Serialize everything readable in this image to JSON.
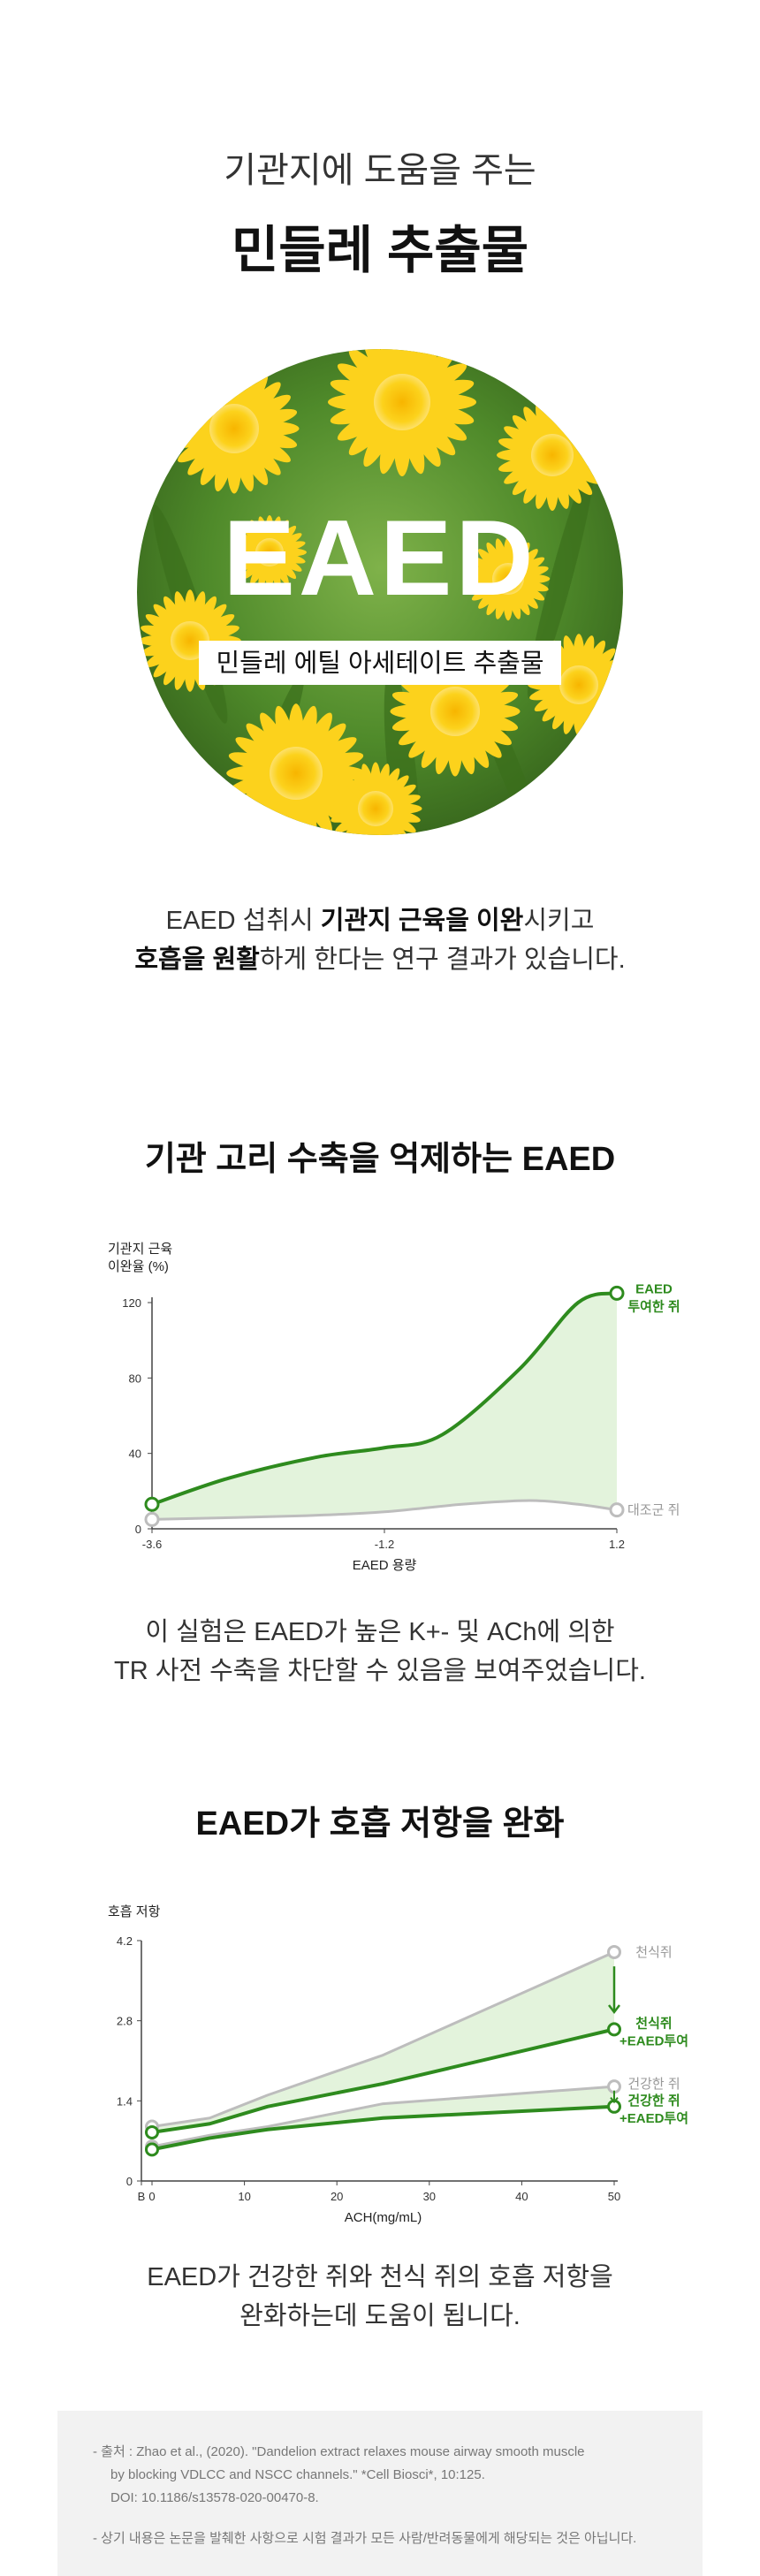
{
  "hero": {
    "subtitle": "기관지에 도움을 주는",
    "title": "민들레 추출물",
    "badge_word": "EAED",
    "badge_label": "민들레 에틸 아세테이트 추출물"
  },
  "intro": {
    "l1a": "EAED 섭취시 ",
    "l1b": "기관지 근육을 이완",
    "l1c": "시키고",
    "l2a": "호흡을 원활",
    "l2b": "하게 한다는 연구 결과가 있습니다."
  },
  "section1": {
    "title": "기관 고리 수축을 억제하는 EAED",
    "caption_l1": "이 실험은 EAED가 높은 K+- 및 ACh에 의한",
    "caption_l2": "TR 사전 수축을 차단할 수 있음을 보여주었습니다."
  },
  "section2": {
    "title": "EAED가 호흡 저항을 완화",
    "caption_l1": "EAED가 건강한 쥐와 천식 쥐의 호흡 저항을",
    "caption_l2": "완화하는데 도움이 됩니다."
  },
  "reference": {
    "l1": "-  출처 : Zhao et al., (2020). \"Dandelion extract relaxes mouse airway smooth muscle",
    "l2": "by blocking VDLCC and NSCC channels.\" *Cell Biosci*, 10:125.",
    "l3": "DOI: 10.1186/s13578-020-00470-8.",
    "l4": "-  상기 내용은 논문을 발췌한 사항으로 시험 결과가 모든 사람/반려동물에게 해당되는 것은 아닙니다."
  },
  "colors": {
    "green": "#2e8b1e",
    "fill": "#e3f3dc",
    "gray": "#bdbdbd"
  },
  "chart_data": [
    {
      "type": "area",
      "ylabel": "기관지 근육\n이완율 (%)",
      "xlabel": "EAED 용량",
      "x_ticks": [
        "-3.6",
        "-1.2",
        "1.2"
      ],
      "xlim": [
        -3.6,
        1.2
      ],
      "ylim": [
        0,
        120
      ],
      "y_ticks": [
        0,
        40,
        80,
        120
      ],
      "grid": false,
      "series": [
        {
          "name": "EAED\n투여한 쥐",
          "x": [
            -3.6,
            -2.8,
            -1.9,
            -1.2,
            -0.6,
            0.2,
            0.8,
            1.2
          ],
          "y": [
            13,
            27,
            38,
            43,
            50,
            85,
            120,
            125
          ]
        },
        {
          "name": "대조군 쥐",
          "x": [
            -3.6,
            -2.0,
            -1.2,
            -0.4,
            0.3,
            0.8,
            1.2
          ],
          "y": [
            5,
            7,
            9,
            13,
            15,
            13,
            10
          ]
        }
      ]
    },
    {
      "type": "line",
      "ylabel": "호흡 저항",
      "xlabel": "ACH(mg/mL)",
      "x_ticks": [
        "B",
        "0",
        "10",
        "20",
        "30",
        "40",
        "50"
      ],
      "xlim": [
        0,
        50
      ],
      "ylim": [
        0,
        4.2
      ],
      "y_ticks": [
        0,
        1.4,
        2.8,
        4.2
      ],
      "grid": false,
      "series": [
        {
          "name": "천식쥐",
          "x": [
            0,
            6.25,
            12.5,
            25,
            50
          ],
          "y": [
            0.95,
            1.1,
            1.5,
            2.2,
            4.0
          ]
        },
        {
          "name": "천식쥐\n+EAED투여",
          "x": [
            0,
            6.25,
            12.5,
            25,
            50
          ],
          "y": [
            0.85,
            1.0,
            1.3,
            1.7,
            2.65
          ]
        },
        {
          "name": "건강한 쥐",
          "x": [
            0,
            6.25,
            12.5,
            25,
            50
          ],
          "y": [
            0.6,
            0.8,
            0.95,
            1.35,
            1.65
          ]
        },
        {
          "name": "건강한 쥐\n+EAED투여",
          "x": [
            0,
            6.25,
            12.5,
            25,
            50
          ],
          "y": [
            0.55,
            0.75,
            0.9,
            1.1,
            1.3
          ]
        }
      ]
    }
  ]
}
